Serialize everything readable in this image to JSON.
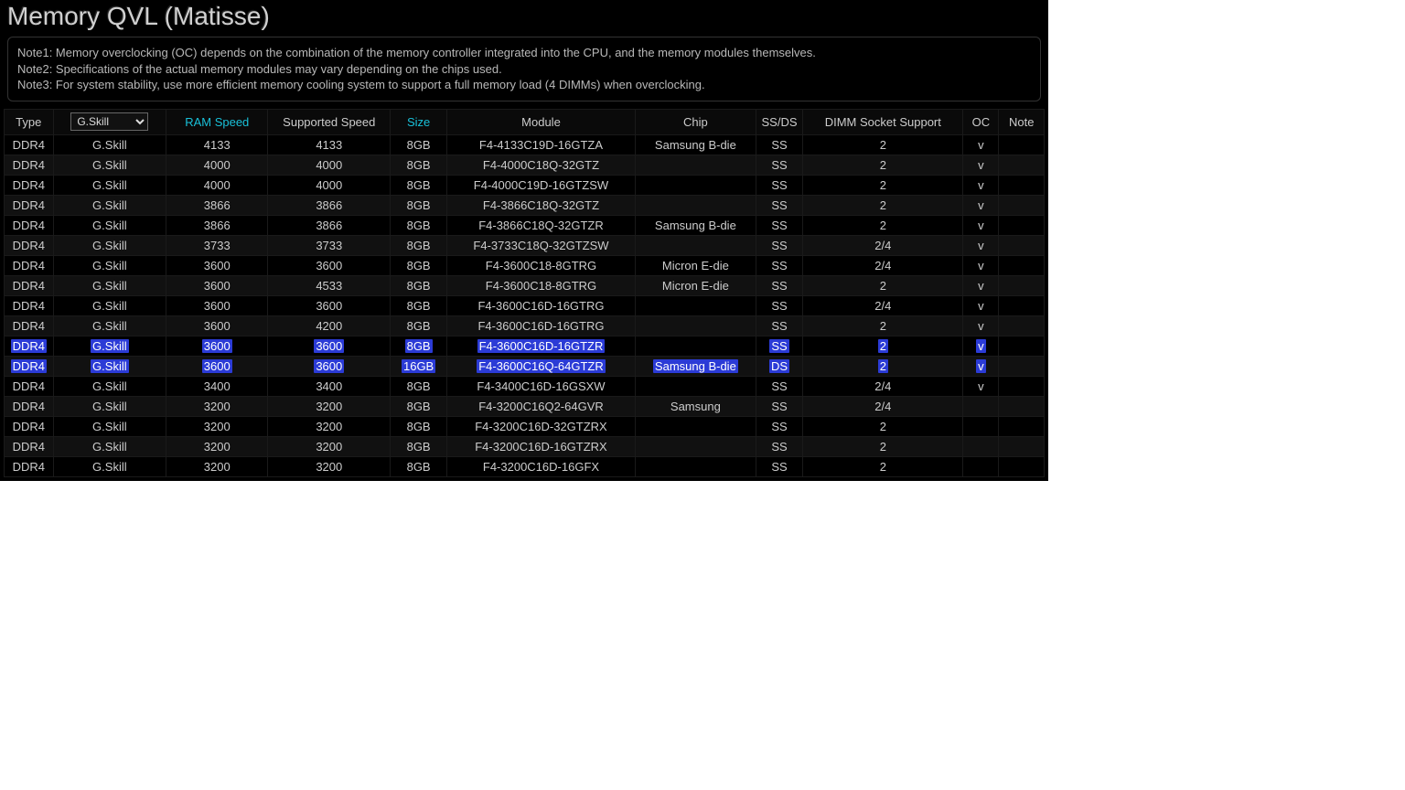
{
  "title": "Memory QVL (Matisse)",
  "notes": [
    "Note1: Memory overclocking (OC) depends on the combination of the memory controller integrated into the CPU, and the memory modules themselves.",
    "Note2: Specifications of the actual memory modules may vary depending on the chips used.",
    "Note3: For system stability, use more efficient memory cooling system to support a full memory load (4 DIMMs) when overclocking."
  ],
  "vendor_selected": "G.Skill",
  "columns": [
    {
      "key": "type",
      "label": "Type",
      "class": "col-type",
      "sortable": false
    },
    {
      "key": "vendor",
      "label": "",
      "class": "col-vendor",
      "sortable": false,
      "is_vendor_select": true
    },
    {
      "key": "ram",
      "label": "RAM Speed",
      "class": "col-ram",
      "sortable": true
    },
    {
      "key": "sup",
      "label": "Supported Speed",
      "class": "col-sup",
      "sortable": false
    },
    {
      "key": "size",
      "label": "Size",
      "class": "col-size",
      "sortable": true
    },
    {
      "key": "mod",
      "label": "Module",
      "class": "col-mod",
      "sortable": false
    },
    {
      "key": "chip",
      "label": "Chip",
      "class": "col-chip",
      "sortable": false
    },
    {
      "key": "ssds",
      "label": "SS/DS",
      "class": "col-ssds",
      "sortable": false
    },
    {
      "key": "dimm",
      "label": "DIMM Socket Support",
      "class": "col-dimm",
      "sortable": false
    },
    {
      "key": "oc",
      "label": "OC",
      "class": "col-oc",
      "sortable": false
    },
    {
      "key": "note",
      "label": "Note",
      "class": "col-note",
      "sortable": false
    }
  ],
  "rows": [
    {
      "type": "DDR4",
      "vendor": "G.Skill",
      "ram": "4133",
      "sup": "4133",
      "size": "8GB",
      "mod": "F4-4133C19D-16GTZA",
      "chip": "Samsung B-die",
      "ssds": "SS",
      "dimm": "2",
      "oc": "v",
      "note": "",
      "highlight": false
    },
    {
      "type": "DDR4",
      "vendor": "G.Skill",
      "ram": "4000",
      "sup": "4000",
      "size": "8GB",
      "mod": "F4-4000C18Q-32GTZ",
      "chip": "",
      "ssds": "SS",
      "dimm": "2",
      "oc": "v",
      "note": "",
      "highlight": false
    },
    {
      "type": "DDR4",
      "vendor": "G.Skill",
      "ram": "4000",
      "sup": "4000",
      "size": "8GB",
      "mod": "F4-4000C19D-16GTZSW",
      "chip": "",
      "ssds": "SS",
      "dimm": "2",
      "oc": "v",
      "note": "",
      "highlight": false
    },
    {
      "type": "DDR4",
      "vendor": "G.Skill",
      "ram": "3866",
      "sup": "3866",
      "size": "8GB",
      "mod": "F4-3866C18Q-32GTZ",
      "chip": "",
      "ssds": "SS",
      "dimm": "2",
      "oc": "v",
      "note": "",
      "highlight": false
    },
    {
      "type": "DDR4",
      "vendor": "G.Skill",
      "ram": "3866",
      "sup": "3866",
      "size": "8GB",
      "mod": "F4-3866C18Q-32GTZR",
      "chip": "Samsung B-die",
      "ssds": "SS",
      "dimm": "2",
      "oc": "v",
      "note": "",
      "highlight": false
    },
    {
      "type": "DDR4",
      "vendor": "G.Skill",
      "ram": "3733",
      "sup": "3733",
      "size": "8GB",
      "mod": "F4-3733C18Q-32GTZSW",
      "chip": "",
      "ssds": "SS",
      "dimm": "2/4",
      "oc": "v",
      "note": "",
      "highlight": false
    },
    {
      "type": "DDR4",
      "vendor": "G.Skill",
      "ram": "3600",
      "sup": "3600",
      "size": "8GB",
      "mod": "F4-3600C18-8GTRG",
      "chip": "Micron E-die",
      "ssds": "SS",
      "dimm": "2/4",
      "oc": "v",
      "note": "",
      "highlight": false
    },
    {
      "type": "DDR4",
      "vendor": "G.Skill",
      "ram": "3600",
      "sup": "4533",
      "size": "8GB",
      "mod": "F4-3600C18-8GTRG",
      "chip": "Micron E-die",
      "ssds": "SS",
      "dimm": "2",
      "oc": "v",
      "note": "",
      "highlight": false
    },
    {
      "type": "DDR4",
      "vendor": "G.Skill",
      "ram": "3600",
      "sup": "3600",
      "size": "8GB",
      "mod": "F4-3600C16D-16GTRG",
      "chip": "",
      "ssds": "SS",
      "dimm": "2/4",
      "oc": "v",
      "note": "",
      "highlight": false
    },
    {
      "type": "DDR4",
      "vendor": "G.Skill",
      "ram": "3600",
      "sup": "4200",
      "size": "8GB",
      "mod": "F4-3600C16D-16GTRG",
      "chip": "",
      "ssds": "SS",
      "dimm": "2",
      "oc": "v",
      "note": "",
      "highlight": false
    },
    {
      "type": "DDR4",
      "vendor": "G.Skill",
      "ram": "3600",
      "sup": "3600",
      "size": "8GB",
      "mod": "F4-3600C16D-16GTZR",
      "chip": "",
      "ssds": "SS",
      "dimm": "2",
      "oc": "v",
      "note": "",
      "highlight": true
    },
    {
      "type": "DDR4",
      "vendor": "G.Skill",
      "ram": "3600",
      "sup": "3600",
      "size": "16GB",
      "mod": "F4-3600C16Q-64GTZR",
      "chip": "Samsung B-die",
      "ssds": "DS",
      "dimm": "2",
      "oc": "v",
      "note": "",
      "highlight": true
    },
    {
      "type": "DDR4",
      "vendor": "G.Skill",
      "ram": "3400",
      "sup": "3400",
      "size": "8GB",
      "mod": "F4-3400C16D-16GSXW",
      "chip": "",
      "ssds": "SS",
      "dimm": "2/4",
      "oc": "v",
      "note": "",
      "highlight": false
    },
    {
      "type": "DDR4",
      "vendor": "G.Skill",
      "ram": "3200",
      "sup": "3200",
      "size": "8GB",
      "mod": "F4-3200C16Q2-64GVR",
      "chip": "Samsung",
      "ssds": "SS",
      "dimm": "2/4",
      "oc": "",
      "note": "",
      "highlight": false
    },
    {
      "type": "DDR4",
      "vendor": "G.Skill",
      "ram": "3200",
      "sup": "3200",
      "size": "8GB",
      "mod": "F4-3200C16D-32GTZRX",
      "chip": "",
      "ssds": "SS",
      "dimm": "2",
      "oc": "",
      "note": "",
      "highlight": false
    },
    {
      "type": "DDR4",
      "vendor": "G.Skill",
      "ram": "3200",
      "sup": "3200",
      "size": "8GB",
      "mod": "F4-3200C16D-16GTZRX",
      "chip": "",
      "ssds": "SS",
      "dimm": "2",
      "oc": "",
      "note": "",
      "highlight": false
    },
    {
      "type": "DDR4",
      "vendor": "G.Skill",
      "ram": "3200",
      "sup": "3200",
      "size": "8GB",
      "mod": "F4-3200C16D-16GFX",
      "chip": "",
      "ssds": "SS",
      "dimm": "2",
      "oc": "",
      "note": "",
      "highlight": false
    }
  ]
}
